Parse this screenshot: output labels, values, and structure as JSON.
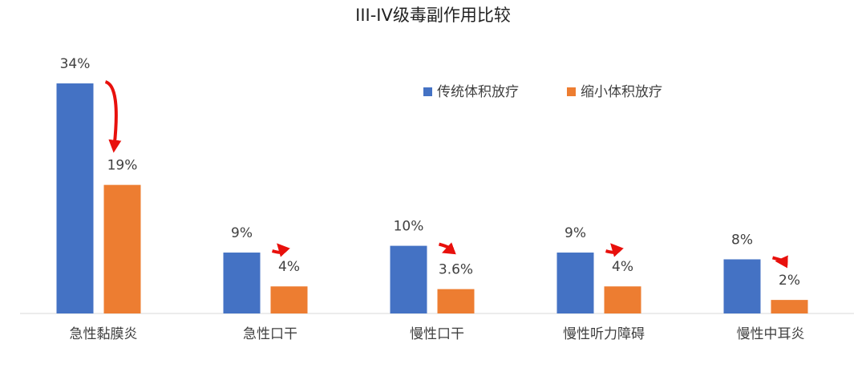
{
  "chart_data": {
    "type": "bar",
    "title": "III-IV级毒副作用比较",
    "categories": [
      "急性黏膜炎",
      "急性口干",
      "慢性口干",
      "慢性听力障碍",
      "慢性中耳炎"
    ],
    "series": [
      {
        "name": "传统体积放疗",
        "color": "#4472c4",
        "values": [
          34,
          9,
          10,
          9,
          8
        ],
        "value_labels": [
          "34%",
          "9%",
          "10%",
          "9%",
          "8%"
        ]
      },
      {
        "name": "缩小体积放疗",
        "color": "#ed7d31",
        "values": [
          19,
          4,
          3.6,
          4,
          2
        ],
        "value_labels": [
          "19%",
          "4%",
          "3.6%",
          "4%",
          "2%"
        ]
      }
    ],
    "legend": "top-right"
  }
}
